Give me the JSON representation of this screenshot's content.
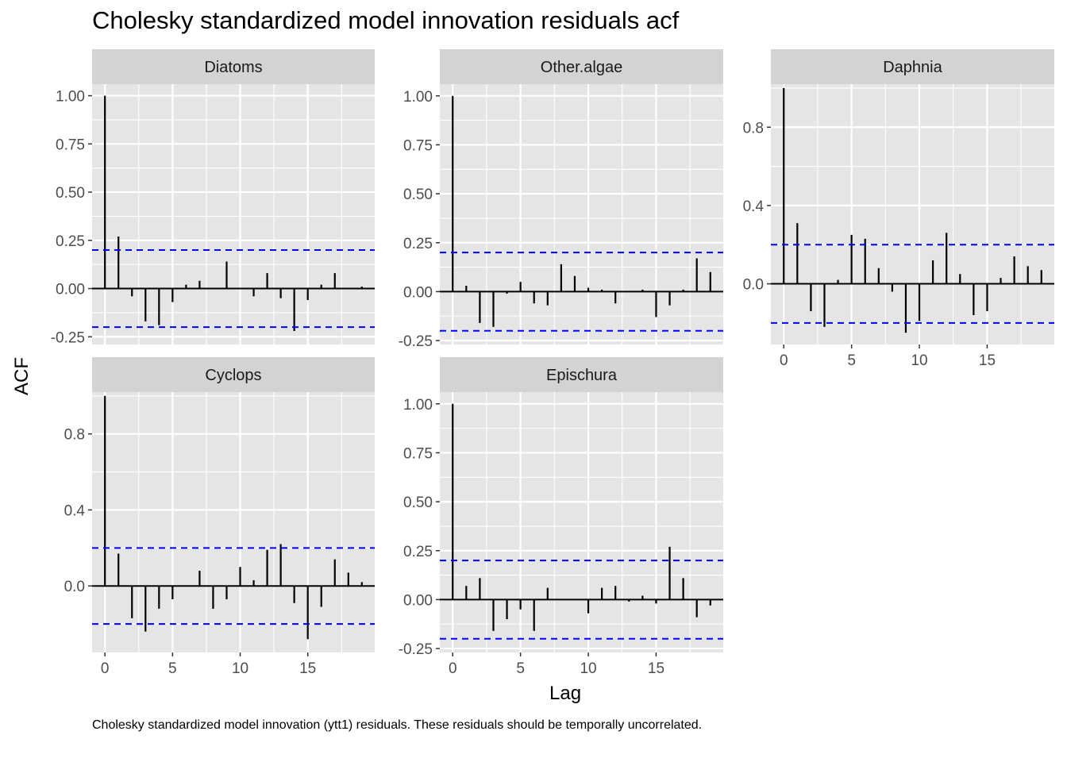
{
  "title": "Cholesky standardized model innovation residuals acf",
  "ylabel": "ACF",
  "xlabel": "Lag",
  "caption": "Cholesky standardized model innovation (ytt1) residuals. These residuals should be temporally uncorrelated.",
  "colors": {
    "panel_background": "#e5e5e5",
    "strip_background": "#d3d3d3",
    "grid": "#ffffff",
    "bars": "#000000",
    "confidence_lines": "#0000ff",
    "tick_label": "#4d4d4d"
  },
  "chart_data": {
    "type": "bar",
    "facet_layout": "3 columns",
    "confidence_band": [
      -0.2,
      0.2
    ],
    "x_ticks": [
      0,
      5,
      10,
      15
    ],
    "x_range": [
      -0.95,
      19.95
    ],
    "panels": [
      {
        "strip": "Diatoms",
        "y_ticks": [
          -0.25,
          0,
          0.25,
          0.5,
          0.75,
          1
        ],
        "y_tick_labels": [
          "-0.25",
          "0.00",
          "0.25",
          "0.50",
          "0.75",
          "1.00"
        ],
        "ylim": [
          -0.29,
          1.06
        ],
        "show_x_axis": false,
        "lags": [
          0,
          1,
          2,
          3,
          4,
          5,
          6,
          7,
          8,
          9,
          10,
          11,
          12,
          13,
          14,
          15,
          16,
          17,
          18,
          19
        ],
        "acf": [
          1.0,
          0.27,
          -0.04,
          -0.17,
          -0.19,
          -0.07,
          0.02,
          0.04,
          0.0,
          0.14,
          0.0,
          -0.04,
          0.08,
          -0.05,
          -0.22,
          -0.06,
          0.02,
          0.08,
          0.0,
          0.01
        ]
      },
      {
        "strip": "Other.algae",
        "y_ticks": [
          -0.25,
          0,
          0.25,
          0.5,
          0.75,
          1
        ],
        "y_tick_labels": [
          "-0.25",
          "0.00",
          "0.25",
          "0.50",
          "0.75",
          "1.00"
        ],
        "ylim": [
          -0.27,
          1.06
        ],
        "show_x_axis": false,
        "lags": [
          0,
          1,
          2,
          3,
          4,
          5,
          6,
          7,
          8,
          9,
          10,
          11,
          12,
          13,
          14,
          15,
          16,
          17,
          18,
          19
        ],
        "acf": [
          1.0,
          0.03,
          -0.16,
          -0.18,
          -0.01,
          0.05,
          -0.06,
          -0.07,
          0.14,
          0.08,
          0.02,
          0.01,
          -0.06,
          0.0,
          0.01,
          -0.13,
          -0.07,
          0.01,
          0.17,
          0.1
        ]
      },
      {
        "strip": "Daphnia",
        "y_ticks": [
          0,
          0.4,
          0.8
        ],
        "y_tick_labels": [
          "0.0",
          "0.4",
          "0.8"
        ],
        "ylim": [
          -0.31,
          1.02
        ],
        "show_x_axis": true,
        "lags": [
          0,
          1,
          2,
          3,
          4,
          5,
          6,
          7,
          8,
          9,
          10,
          11,
          12,
          13,
          14,
          15,
          16,
          17,
          18,
          19
        ],
        "acf": [
          1.0,
          0.31,
          -0.14,
          -0.22,
          0.02,
          0.25,
          0.23,
          0.08,
          -0.04,
          -0.25,
          -0.19,
          0.12,
          0.26,
          0.05,
          -0.16,
          -0.14,
          0.03,
          0.14,
          0.09,
          0.07
        ]
      },
      {
        "strip": "Cyclops",
        "y_ticks": [
          0,
          0.4,
          0.8
        ],
        "y_tick_labels": [
          "0.0",
          "0.4",
          "0.8"
        ],
        "ylim": [
          -0.35,
          1.02
        ],
        "show_x_axis": true,
        "lags": [
          0,
          1,
          2,
          3,
          4,
          5,
          6,
          7,
          8,
          9,
          10,
          11,
          12,
          13,
          14,
          15,
          16,
          17,
          18,
          19
        ],
        "acf": [
          1.0,
          0.17,
          -0.17,
          -0.24,
          -0.12,
          -0.07,
          0.0,
          0.08,
          -0.12,
          -0.07,
          0.1,
          0.03,
          0.19,
          0.22,
          -0.09,
          -0.28,
          -0.11,
          0.14,
          0.07,
          0.02
        ]
      },
      {
        "strip": "Epischura",
        "y_ticks": [
          -0.25,
          0,
          0.25,
          0.5,
          0.75,
          1
        ],
        "y_tick_labels": [
          "-0.25",
          "0.00",
          "0.25",
          "0.50",
          "0.75",
          "1.00"
        ],
        "ylim": [
          -0.27,
          1.06
        ],
        "show_x_axis": true,
        "lags": [
          0,
          1,
          2,
          3,
          4,
          5,
          6,
          7,
          8,
          9,
          10,
          11,
          12,
          13,
          14,
          15,
          16,
          17,
          18,
          19
        ],
        "acf": [
          1.0,
          0.07,
          0.11,
          -0.16,
          -0.1,
          -0.05,
          -0.16,
          0.06,
          0.0,
          0.0,
          -0.07,
          0.06,
          0.07,
          -0.01,
          0.02,
          -0.02,
          0.27,
          0.11,
          -0.09,
          -0.03
        ]
      }
    ]
  }
}
